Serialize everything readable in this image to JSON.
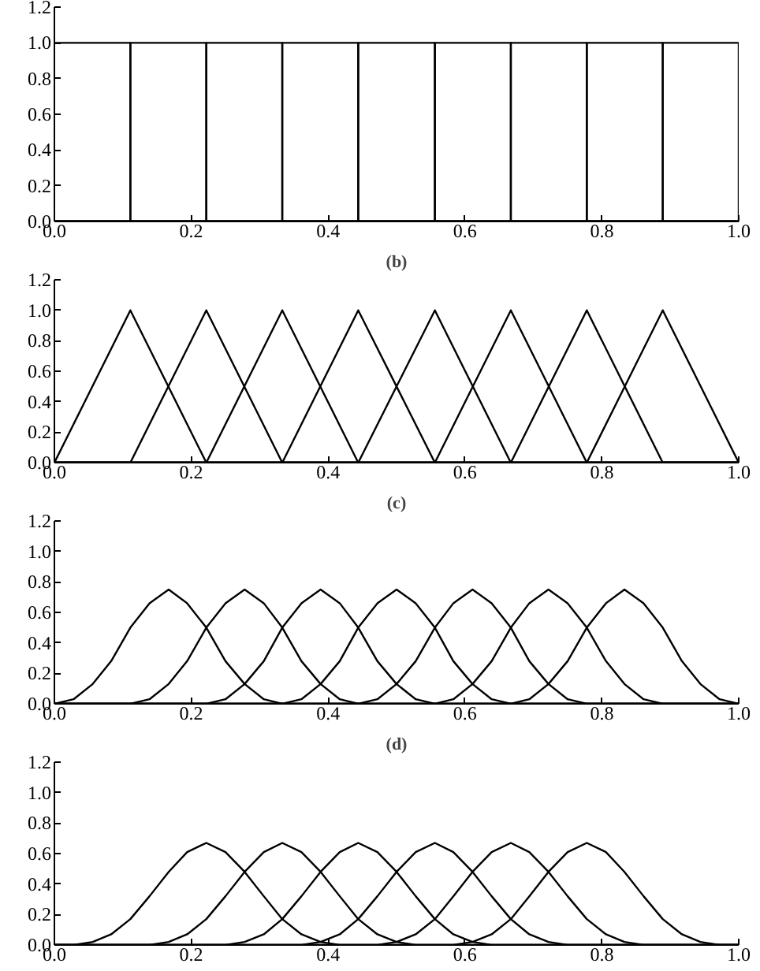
{
  "chart_data": [
    {
      "type": "step",
      "xlim": [
        0,
        1
      ],
      "ylim": [
        0,
        1.2
      ],
      "xticks": [
        {
          "value": 0,
          "label": "0.0"
        },
        {
          "value": 0.2,
          "label": "0.2"
        },
        {
          "value": 0.4,
          "label": "0.4"
        },
        {
          "value": 0.6,
          "label": "0.6"
        },
        {
          "value": 0.8,
          "label": "0.8"
        },
        {
          "value": 1,
          "label": "1.0"
        }
      ],
      "yticks": [
        {
          "value": 0,
          "label": "0.0"
        },
        {
          "value": 0.2,
          "label": "0.2"
        },
        {
          "value": 0.4,
          "label": "0.4"
        },
        {
          "value": 0.6,
          "label": "0.6"
        },
        {
          "value": 0.8,
          "label": "0.8"
        },
        {
          "value": 1,
          "label": "1.0"
        },
        {
          "value": 1.2,
          "label": "1.2"
        }
      ],
      "x": [
        0,
        0.111,
        0.222,
        0.333,
        0.444,
        0.556,
        0.667,
        0.778,
        0.889,
        1
      ],
      "series": [
        {
          "color": "#000000",
          "values": [
            1,
            0,
            0,
            0,
            0,
            0,
            0,
            0,
            0,
            0
          ]
        },
        {
          "color": "#000000",
          "values": [
            0,
            1,
            0,
            0,
            0,
            0,
            0,
            0,
            0,
            0
          ]
        },
        {
          "color": "#000000",
          "values": [
            0,
            0,
            1,
            0,
            0,
            0,
            0,
            0,
            0,
            0
          ]
        },
        {
          "color": "#000000",
          "values": [
            0,
            0,
            0,
            1,
            0,
            0,
            0,
            0,
            0,
            0
          ]
        },
        {
          "color": "#000000",
          "values": [
            0,
            0,
            0,
            0,
            1,
            0,
            0,
            0,
            0,
            0
          ]
        },
        {
          "color": "#000000",
          "values": [
            0,
            0,
            0,
            0,
            0,
            1,
            0,
            0,
            0,
            0
          ]
        },
        {
          "color": "#000000",
          "values": [
            0,
            0,
            0,
            0,
            0,
            0,
            1,
            0,
            0,
            0
          ]
        },
        {
          "color": "#000000",
          "values": [
            0,
            0,
            0,
            0,
            0,
            0,
            0,
            1,
            0,
            0
          ]
        },
        {
          "color": "#000000",
          "values": [
            0,
            0,
            0,
            0,
            0,
            0,
            0,
            0,
            1,
            0
          ]
        }
      ]
    },
    {
      "type": "line",
      "title": "(b)",
      "xlim": [
        0,
        1
      ],
      "ylim": [
        0,
        1.2
      ],
      "xticks": [
        {
          "value": 0,
          "label": "0.0"
        },
        {
          "value": 0.2,
          "label": "0.2"
        },
        {
          "value": 0.4,
          "label": "0.4"
        },
        {
          "value": 0.6,
          "label": "0.6"
        },
        {
          "value": 0.8,
          "label": "0.8"
        },
        {
          "value": 1,
          "label": "1.0"
        }
      ],
      "yticks": [
        {
          "value": 0,
          "label": "0.0"
        },
        {
          "value": 0.2,
          "label": "0.2"
        },
        {
          "value": 0.4,
          "label": "0.4"
        },
        {
          "value": 0.6,
          "label": "0.6"
        },
        {
          "value": 0.8,
          "label": "0.8"
        },
        {
          "value": 1,
          "label": "1.0"
        },
        {
          "value": 1.2,
          "label": "1.2"
        }
      ],
      "x": [
        0,
        0.111,
        0.222,
        0.333,
        0.444,
        0.556,
        0.667,
        0.778,
        0.889,
        1
      ],
      "series": [
        {
          "color": "#000000",
          "values": [
            0,
            1,
            0,
            0,
            0,
            0,
            0,
            0,
            0,
            0
          ]
        },
        {
          "color": "#000000",
          "values": [
            0,
            0,
            1,
            0,
            0,
            0,
            0,
            0,
            0,
            0
          ]
        },
        {
          "color": "#000000",
          "values": [
            0,
            0,
            0,
            1,
            0,
            0,
            0,
            0,
            0,
            0
          ]
        },
        {
          "color": "#000000",
          "values": [
            0,
            0,
            0,
            0,
            1,
            0,
            0,
            0,
            0,
            0
          ]
        },
        {
          "color": "#000000",
          "values": [
            0,
            0,
            0,
            0,
            0,
            1,
            0,
            0,
            0,
            0
          ]
        },
        {
          "color": "#000000",
          "values": [
            0,
            0,
            0,
            0,
            0,
            0,
            1,
            0,
            0,
            0
          ]
        },
        {
          "color": "#000000",
          "values": [
            0,
            0,
            0,
            0,
            0,
            0,
            0,
            1,
            0,
            0
          ]
        },
        {
          "color": "#000000",
          "values": [
            0,
            0,
            0,
            0,
            0,
            0,
            0,
            0,
            1,
            0
          ]
        }
      ]
    },
    {
      "type": "line",
      "title": "(c)",
      "xlim": [
        0,
        1
      ],
      "ylim": [
        0,
        1.2
      ],
      "xticks": [
        {
          "value": 0,
          "label": "0.0"
        },
        {
          "value": 0.2,
          "label": "0.2"
        },
        {
          "value": 0.4,
          "label": "0.4"
        },
        {
          "value": 0.6,
          "label": "0.6"
        },
        {
          "value": 0.8,
          "label": "0.8"
        },
        {
          "value": 1,
          "label": "1.0"
        }
      ],
      "yticks": [
        {
          "value": 0,
          "label": "0.0"
        },
        {
          "value": 0.2,
          "label": "0.2"
        },
        {
          "value": 0.4,
          "label": "0.4"
        },
        {
          "value": 0.6,
          "label": "0.6"
        },
        {
          "value": 0.8,
          "label": "0.8"
        },
        {
          "value": 1,
          "label": "1.0"
        },
        {
          "value": 1.2,
          "label": "1.2"
        }
      ],
      "x": [
        0,
        0.028,
        0.056,
        0.083,
        0.111,
        0.139,
        0.167,
        0.194,
        0.222,
        0.25,
        0.278,
        0.306,
        0.333,
        0.361,
        0.389,
        0.417,
        0.444,
        0.472,
        0.5,
        0.528,
        0.556,
        0.583,
        0.611,
        0.639,
        0.667,
        0.694,
        0.722,
        0.75,
        0.778,
        0.806,
        0.833,
        0.861,
        0.889,
        0.917,
        0.944,
        0.972,
        1
      ],
      "series": [
        {
          "color": "#000000",
          "values": [
            0,
            0.03,
            0.13,
            0.28,
            0.5,
            0.66,
            0.75,
            0.66,
            0.5,
            0.28,
            0.13,
            0.03,
            0,
            0,
            0,
            0,
            0,
            0,
            0,
            0,
            0,
            0,
            0,
            0,
            0,
            0,
            0,
            0,
            0,
            0,
            0,
            0,
            0,
            0,
            0,
            0,
            0
          ]
        },
        {
          "color": "#000000",
          "values": [
            0,
            0,
            0,
            0,
            0,
            0.03,
            0.13,
            0.28,
            0.5,
            0.66,
            0.75,
            0.66,
            0.5,
            0.28,
            0.13,
            0.03,
            0,
            0,
            0,
            0,
            0,
            0,
            0,
            0,
            0,
            0,
            0,
            0,
            0,
            0,
            0,
            0,
            0,
            0,
            0,
            0,
            0
          ]
        },
        {
          "color": "#000000",
          "values": [
            0,
            0,
            0,
            0,
            0,
            0,
            0,
            0,
            0,
            0.03,
            0.13,
            0.28,
            0.5,
            0.66,
            0.75,
            0.66,
            0.5,
            0.28,
            0.13,
            0.03,
            0,
            0,
            0,
            0,
            0,
            0,
            0,
            0,
            0,
            0,
            0,
            0,
            0,
            0,
            0,
            0,
            0
          ]
        },
        {
          "color": "#000000",
          "values": [
            0,
            0,
            0,
            0,
            0,
            0,
            0,
            0,
            0,
            0,
            0,
            0,
            0,
            0.03,
            0.13,
            0.28,
            0.5,
            0.66,
            0.75,
            0.66,
            0.5,
            0.28,
            0.13,
            0.03,
            0,
            0,
            0,
            0,
            0,
            0,
            0,
            0,
            0,
            0,
            0,
            0,
            0
          ]
        },
        {
          "color": "#000000",
          "values": [
            0,
            0,
            0,
            0,
            0,
            0,
            0,
            0,
            0,
            0,
            0,
            0,
            0,
            0,
            0,
            0,
            0,
            0.03,
            0.13,
            0.28,
            0.5,
            0.66,
            0.75,
            0.66,
            0.5,
            0.28,
            0.13,
            0.03,
            0,
            0,
            0,
            0,
            0,
            0,
            0,
            0,
            0
          ]
        },
        {
          "color": "#000000",
          "values": [
            0,
            0,
            0,
            0,
            0,
            0,
            0,
            0,
            0,
            0,
            0,
            0,
            0,
            0,
            0,
            0,
            0,
            0,
            0,
            0,
            0,
            0.03,
            0.13,
            0.28,
            0.5,
            0.66,
            0.75,
            0.66,
            0.5,
            0.28,
            0.13,
            0.03,
            0,
            0,
            0,
            0,
            0
          ]
        },
        {
          "color": "#000000",
          "values": [
            0,
            0,
            0,
            0,
            0,
            0,
            0,
            0,
            0,
            0,
            0,
            0,
            0,
            0,
            0,
            0,
            0,
            0,
            0,
            0,
            0,
            0,
            0,
            0,
            0,
            0.03,
            0.13,
            0.28,
            0.5,
            0.66,
            0.75,
            0.66,
            0.5,
            0.28,
            0.13,
            0.03,
            0
          ]
        }
      ]
    },
    {
      "type": "line",
      "title": "(d)",
      "xlim": [
        0,
        1
      ],
      "ylim": [
        0,
        1.2
      ],
      "xticks": [
        {
          "value": 0,
          "label": "0.0"
        },
        {
          "value": 0.2,
          "label": "0.2"
        },
        {
          "value": 0.4,
          "label": "0.4"
        },
        {
          "value": 0.6,
          "label": "0.6"
        },
        {
          "value": 0.8,
          "label": "0.8"
        },
        {
          "value": 1,
          "label": "1.0"
        }
      ],
      "yticks": [
        {
          "value": 0,
          "label": "0.0"
        },
        {
          "value": 0.2,
          "label": "0.2"
        },
        {
          "value": 0.4,
          "label": "0.4"
        },
        {
          "value": 0.6,
          "label": "0.6"
        },
        {
          "value": 0.8,
          "label": "0.8"
        },
        {
          "value": 1,
          "label": "1.0"
        },
        {
          "value": 1.2,
          "label": "1.2"
        }
      ],
      "x": [
        0,
        0.028,
        0.056,
        0.083,
        0.111,
        0.139,
        0.167,
        0.194,
        0.222,
        0.25,
        0.278,
        0.306,
        0.333,
        0.361,
        0.389,
        0.417,
        0.444,
        0.472,
        0.5,
        0.528,
        0.556,
        0.583,
        0.611,
        0.639,
        0.667,
        0.694,
        0.722,
        0.75,
        0.778,
        0.806,
        0.833,
        0.861,
        0.889,
        0.917,
        0.944,
        0.972,
        1
      ],
      "series": [
        {
          "color": "#000000",
          "values": [
            0,
            0,
            0.02,
            0.07,
            0.17,
            0.32,
            0.48,
            0.61,
            0.67,
            0.61,
            0.48,
            0.32,
            0.17,
            0.07,
            0.02,
            0,
            0,
            0,
            0,
            0,
            0,
            0,
            0,
            0,
            0,
            0,
            0,
            0,
            0,
            0,
            0,
            0,
            0,
            0,
            0,
            0,
            0
          ]
        },
        {
          "color": "#000000",
          "values": [
            0,
            0,
            0,
            0,
            0,
            0,
            0.02,
            0.07,
            0.17,
            0.32,
            0.48,
            0.61,
            0.67,
            0.61,
            0.48,
            0.32,
            0.17,
            0.07,
            0.02,
            0,
            0,
            0,
            0,
            0,
            0,
            0,
            0,
            0,
            0,
            0,
            0,
            0,
            0,
            0,
            0,
            0,
            0
          ]
        },
        {
          "color": "#000000",
          "values": [
            0,
            0,
            0,
            0,
            0,
            0,
            0,
            0,
            0,
            0,
            0.02,
            0.07,
            0.17,
            0.32,
            0.48,
            0.61,
            0.67,
            0.61,
            0.48,
            0.32,
            0.17,
            0.07,
            0.02,
            0,
            0,
            0,
            0,
            0,
            0,
            0,
            0,
            0,
            0,
            0,
            0,
            0,
            0
          ]
        },
        {
          "color": "#000000",
          "values": [
            0,
            0,
            0,
            0,
            0,
            0,
            0,
            0,
            0,
            0,
            0,
            0,
            0,
            0,
            0.02,
            0.07,
            0.17,
            0.32,
            0.48,
            0.61,
            0.67,
            0.61,
            0.48,
            0.32,
            0.17,
            0.07,
            0.02,
            0,
            0,
            0,
            0,
            0,
            0,
            0,
            0,
            0,
            0
          ]
        },
        {
          "color": "#000000",
          "values": [
            0,
            0,
            0,
            0,
            0,
            0,
            0,
            0,
            0,
            0,
            0,
            0,
            0,
            0,
            0,
            0,
            0,
            0,
            0.02,
            0.07,
            0.17,
            0.32,
            0.48,
            0.61,
            0.67,
            0.61,
            0.48,
            0.32,
            0.17,
            0.07,
            0.02,
            0,
            0,
            0,
            0,
            0,
            0
          ]
        },
        {
          "color": "#000000",
          "values": [
            0,
            0,
            0,
            0,
            0,
            0,
            0,
            0,
            0,
            0,
            0,
            0,
            0,
            0,
            0,
            0,
            0,
            0,
            0,
            0,
            0,
            0,
            0.02,
            0.07,
            0.17,
            0.32,
            0.48,
            0.61,
            0.67,
            0.61,
            0.48,
            0.32,
            0.17,
            0.07,
            0.02,
            0,
            0
          ]
        }
      ]
    }
  ]
}
